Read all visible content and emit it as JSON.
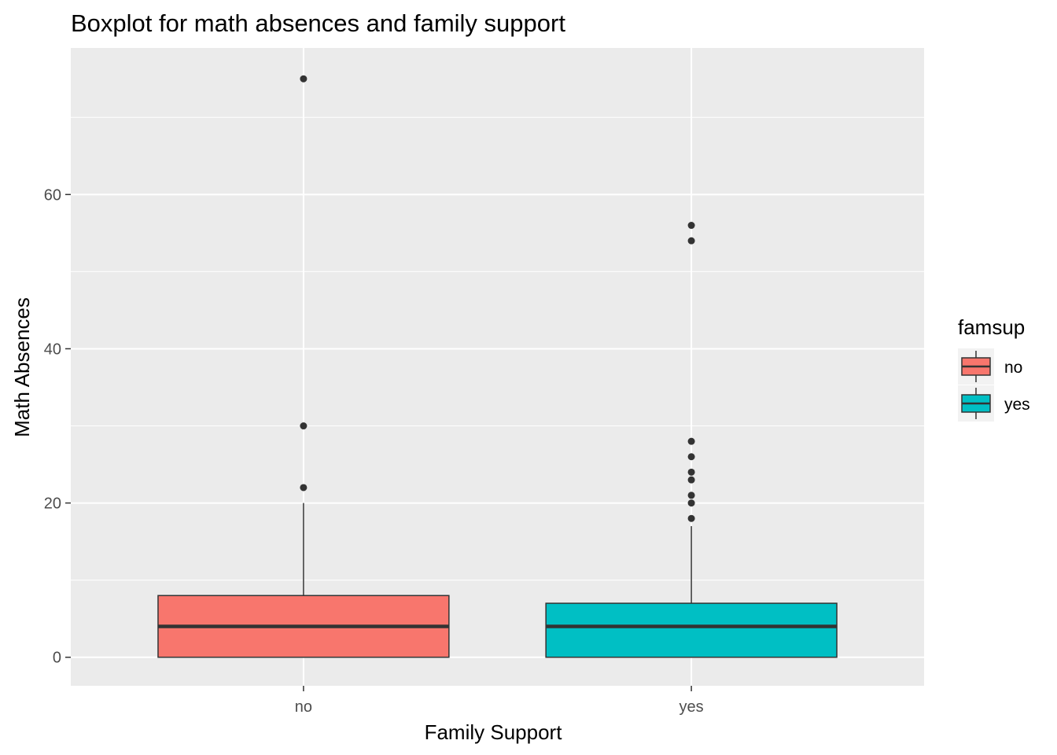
{
  "chart_data": {
    "type": "boxplot",
    "title": "Boxplot for math absences and family support",
    "xlabel": "Family Support",
    "ylabel": "Math Absences",
    "ylim": [
      -3.7,
      79
    ],
    "yticks": [
      0,
      20,
      40,
      60
    ],
    "grid": true,
    "legend": {
      "title": "famsup",
      "position": "right",
      "entries": [
        "no",
        "yes"
      ]
    },
    "categories": [
      "no",
      "yes"
    ],
    "series": [
      {
        "category": "no",
        "color": "#F8766D",
        "min": 0,
        "q1": 0,
        "median": 4,
        "q3": 8,
        "whisker_high": 20,
        "outliers": [
          22,
          30,
          75
        ]
      },
      {
        "category": "yes",
        "color": "#00BFC4",
        "min": 0,
        "q1": 0,
        "median": 4,
        "q3": 7,
        "whisker_high": 17,
        "outliers": [
          18,
          20,
          21,
          23,
          24,
          26,
          28,
          54,
          56
        ]
      }
    ]
  }
}
